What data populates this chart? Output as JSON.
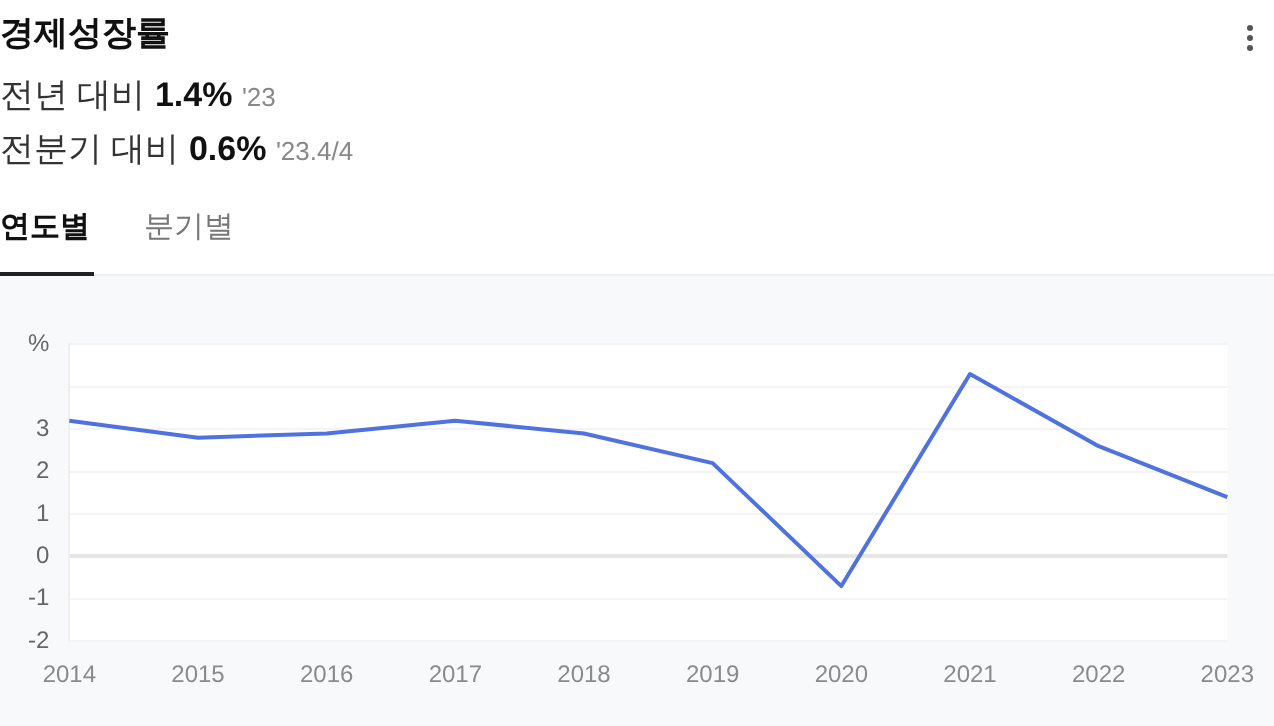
{
  "chart_data": {
    "type": "line",
    "title": "경제성장률",
    "annotations": [
      "전년 대비",
      "1.4%",
      "'23",
      "전분기 대비",
      "0.6%",
      "'23.4/4",
      "연도별",
      "분기별"
    ],
    "categories": [
      "2014",
      "2015",
      "2016",
      "2017",
      "2018",
      "2019",
      "2020",
      "2021",
      "2022",
      "2023"
    ],
    "series": [
      {
        "color": "#4f72e0",
        "values": [
          3.2,
          2.8,
          2.9,
          3.2,
          2.9,
          2.2,
          -0.7,
          4.3,
          2.6,
          1.4
        ]
      }
    ],
    "ylim": [
      -2,
      5
    ],
    "yticks": [
      -2,
      -1,
      0,
      1,
      2,
      3,
      {
        "value": 4,
        "label": null
      },
      {
        "value": 5,
        "label": "%"
      }
    ],
    "grid": "y",
    "legend": false,
    "marker": "none",
    "line_style": "solid"
  }
}
